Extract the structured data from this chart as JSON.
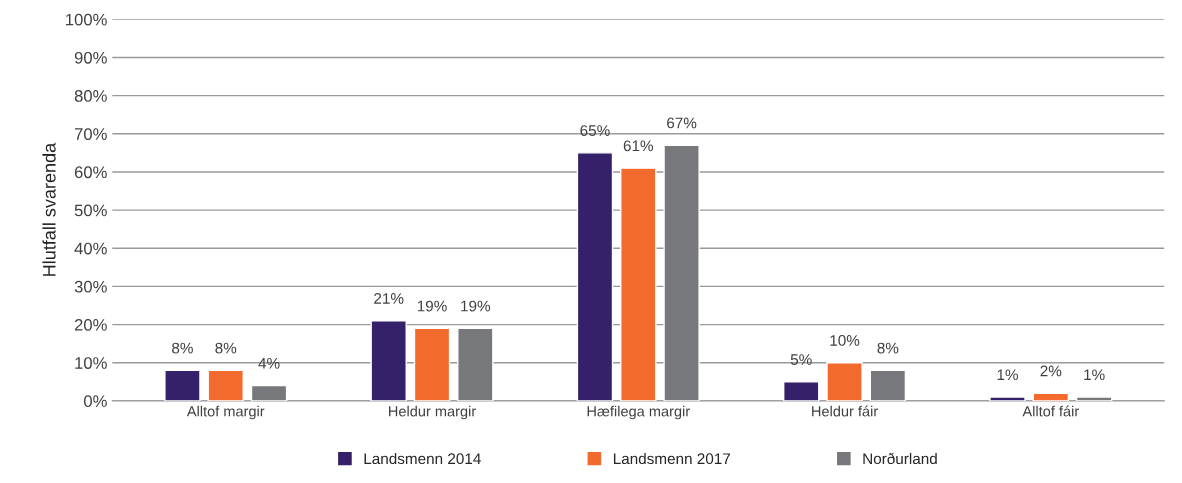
{
  "chart_data": {
    "type": "bar",
    "ylabel": "Hlutfall svarenda",
    "categories": [
      "Alltof margir",
      "Heldur margir",
      "Hæfilega margir",
      "Heldur fáir",
      "Alltof fáir"
    ],
    "series": [
      {
        "name": "Landsmenn 2014",
        "color": "#35206a",
        "values": [
          8,
          21,
          65,
          5,
          1
        ],
        "value_labels": [
          "8%",
          "21%",
          "65%",
          "5%",
          "1%"
        ]
      },
      {
        "name": "Landsmenn 2017",
        "color": "#f26a2e",
        "values": [
          8,
          19,
          61,
          10,
          2
        ],
        "value_labels": [
          "8%",
          "19%",
          "61%",
          "10%",
          "2%"
        ]
      },
      {
        "name": "Norðurland",
        "color": "#77787b",
        "values": [
          4,
          19,
          67,
          8,
          1
        ],
        "value_labels": [
          "4%",
          "19%",
          "67%",
          "8%",
          "1%"
        ]
      }
    ],
    "ylim": [
      0,
      100
    ],
    "yticks": [
      {
        "value": 0,
        "label": "0%"
      },
      {
        "value": 10,
        "label": "10%"
      },
      {
        "value": 20,
        "label": "20%"
      },
      {
        "value": 30,
        "label": "30%"
      },
      {
        "value": 40,
        "label": "40%"
      },
      {
        "value": 50,
        "label": "50%"
      },
      {
        "value": 60,
        "label": "60%"
      },
      {
        "value": 70,
        "label": "70%"
      },
      {
        "value": 80,
        "label": "80%"
      },
      {
        "value": 90,
        "label": "90%"
      },
      {
        "value": 100,
        "label": "100%"
      }
    ],
    "grid": "y",
    "legend": "bottom"
  }
}
